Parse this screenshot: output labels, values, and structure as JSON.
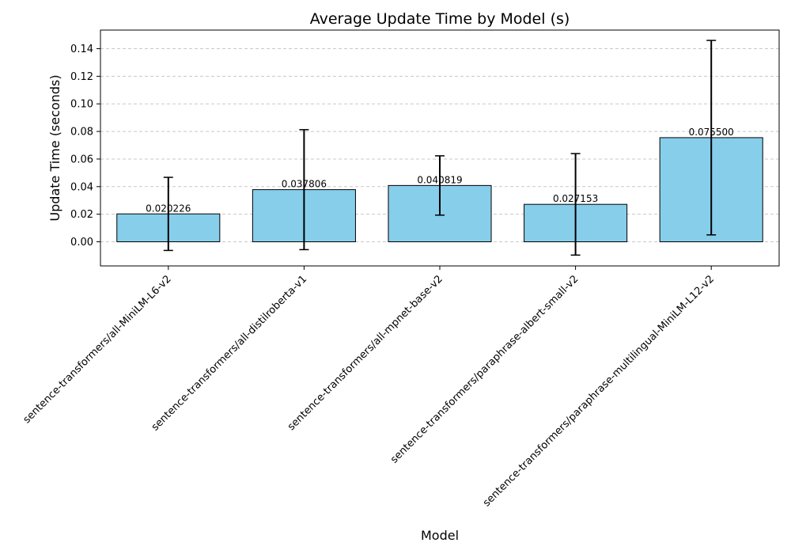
{
  "chart_data": {
    "type": "bar",
    "title": "Average Update Time by Model (s)",
    "xlabel": "Model",
    "ylabel": "Update Time (seconds)",
    "categories": [
      "sentence-transformers/all-MiniLM-L6-v2",
      "sentence-transformers/all-distilroberta-v1",
      "sentence-transformers/all-mpnet-base-v2",
      "sentence-transformers/paraphrase-albert-small-v2",
      "sentence-transformers/paraphrase-multilingual-MiniLM-L12-v2"
    ],
    "values": [
      0.020226,
      0.037806,
      0.040819,
      0.027153,
      0.0755
    ],
    "value_labels": [
      "0.020226",
      "0.037806",
      "0.040819",
      "0.027153",
      "0.075500"
    ],
    "error": [
      0.0265,
      0.0435,
      0.0215,
      0.0368,
      0.0705
    ],
    "ylim": [
      -0.0175,
      0.1535
    ],
    "yticks": [
      0.0,
      0.02,
      0.04,
      0.06,
      0.08,
      0.1,
      0.12,
      0.14
    ],
    "ytick_labels": [
      "0.00",
      "0.02",
      "0.04",
      "0.06",
      "0.08",
      "0.10",
      "0.12",
      "0.14"
    ],
    "grid": "y-dashed",
    "colors": {
      "bar_fill": "#87CEEB",
      "bar_edge": "#000000",
      "grid": "#c8c8c8",
      "error_bar": "#000000"
    }
  }
}
